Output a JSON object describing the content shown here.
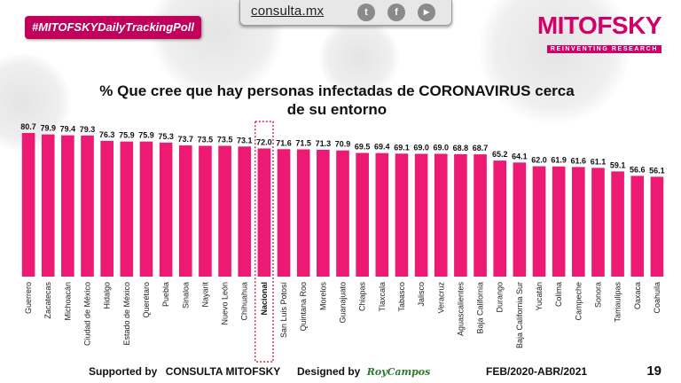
{
  "header": {
    "site": "consulta.mx",
    "social_icons": [
      {
        "name": "twitter-icon",
        "glyph": "t"
      },
      {
        "name": "facebook-icon",
        "glyph": "f"
      },
      {
        "name": "youtube-icon",
        "glyph": "▶"
      }
    ],
    "hashtag": "#MITOFSKYDailyTrackingPoll",
    "brand": "MITOFSKY",
    "brand_tagline": "REINVENTING RESEARCH"
  },
  "colors": {
    "bar": "#ec1a73",
    "highlight": "#c0001e",
    "brand": "#d4006a"
  },
  "chart_data": {
    "type": "bar",
    "title_line1": "% Que cree que hay personas infectadas de CORONAVIRUS cerca",
    "title_line2": "de su entorno",
    "categories": [
      "Guerrero",
      "Zacatecas",
      "Michoacán",
      "Ciudad de México",
      "Hidalgo",
      "Estado de México",
      "Querétaro",
      "Puebla",
      "Sinaloa",
      "Nayarit",
      "Nuevo León",
      "Chihuahua",
      "Nacional",
      "San Luis Potosí",
      "Quintana Roo",
      "Morelos",
      "Guanajuato",
      "Chiapas",
      "Tlaxcala",
      "Tabasco",
      "Jalisco",
      "Veracruz",
      "Aguascalientes",
      "Baja California",
      "Durango",
      "Baja California Sur",
      "Yucatán",
      "Colima",
      "Campeche",
      "Sonora",
      "Tamaulipas",
      "Oaxaca",
      "Coahuila"
    ],
    "values": [
      80.7,
      79.9,
      79.4,
      79.3,
      76.3,
      75.9,
      75.9,
      75.3,
      73.7,
      73.5,
      73.5,
      73.1,
      72.0,
      71.6,
      71.5,
      71.3,
      70.9,
      69.5,
      69.4,
      69.1,
      69.0,
      69.0,
      68.8,
      68.7,
      65.2,
      64.1,
      62.0,
      61.9,
      61.6,
      61.1,
      59.1,
      56.6,
      56.1
    ],
    "labels": [
      "80.7",
      "79.9",
      "79.4",
      "79.3",
      "76.3",
      "75.9",
      "75.9",
      "75.3",
      "73.7",
      "73.5",
      "73.5",
      "73.1",
      "72.0",
      "71.6",
      "71.5",
      "71.3",
      "70.9",
      "69.5",
      "69.4",
      "69.1",
      "69.0",
      "69.0",
      "68.8",
      "68.7",
      "65.2",
      "64.1",
      "62.0",
      "61.9",
      "61.6",
      "61.1",
      "59.1",
      "56.6",
      "56.1"
    ],
    "highlight_category": "Nacional",
    "ylim": [
      0,
      80.7
    ],
    "xlabel": "",
    "ylabel": "",
    "legend": "none",
    "grid": false
  },
  "footer": {
    "supported_label": "Supported by",
    "supported_by": "CONSULTA   MITOFSKY",
    "designed_label": "Designed by",
    "designer": "RoyCampos",
    "period": "FEB/2020-ABR/2021",
    "page": "19"
  }
}
